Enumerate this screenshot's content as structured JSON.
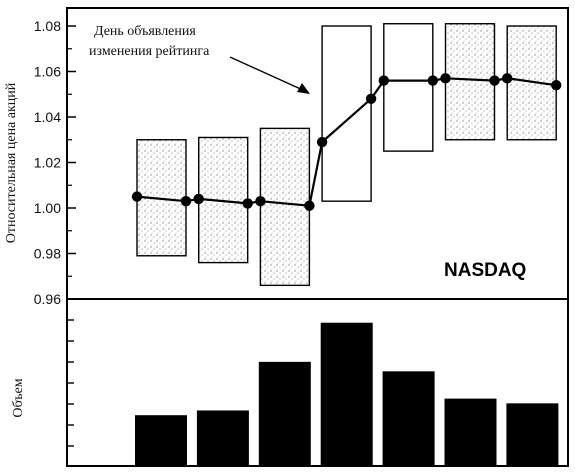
{
  "chart_data": [
    {
      "type": "line",
      "ylabel": "Относительная цена акций",
      "ylim": [
        0.96,
        1.09
      ],
      "yticks": [
        0.96,
        0.98,
        1.0,
        1.02,
        1.04,
        1.06,
        1.08
      ],
      "ytick_labels": [
        "0.96",
        "0.98",
        "1.00",
        "1.02",
        "1.04",
        "1.06",
        "1.08"
      ],
      "grid": false,
      "boxes": [
        {
          "low": 0.979,
          "high": 1.03,
          "pattern": "stipple"
        },
        {
          "low": 0.976,
          "high": 1.031,
          "pattern": "stipple"
        },
        {
          "low": 0.966,
          "high": 1.035,
          "pattern": "stipple"
        },
        {
          "low": 1.003,
          "high": 1.08,
          "pattern": "plain"
        },
        {
          "low": 1.025,
          "high": 1.081,
          "pattern": "plain"
        },
        {
          "low": 1.03,
          "high": 1.081,
          "pattern": "stipple"
        },
        {
          "low": 1.03,
          "high": 1.08,
          "pattern": "stipple"
        }
      ],
      "series": [
        {
          "values": [
            1.005,
            1.003,
            1.004,
            1.002,
            1.003,
            1.001,
            1.029,
            1.048,
            1.056,
            1.056,
            1.057,
            1.056,
            1.057,
            1.054
          ]
        }
      ],
      "annotation": {
        "lines": [
          "День объявления",
          "изменения рейтинга"
        ]
      },
      "watermark_text": "NASDAQ"
    },
    {
      "type": "bar",
      "ylabel": "Объем",
      "values": [
        42,
        46,
        87,
        120,
        79,
        56,
        52
      ],
      "ylim": [
        0,
        140
      ]
    }
  ],
  "colors": {
    "ink": "#000000",
    "box_fill": "#ffffff",
    "stipple": "#8a8a8a"
  }
}
